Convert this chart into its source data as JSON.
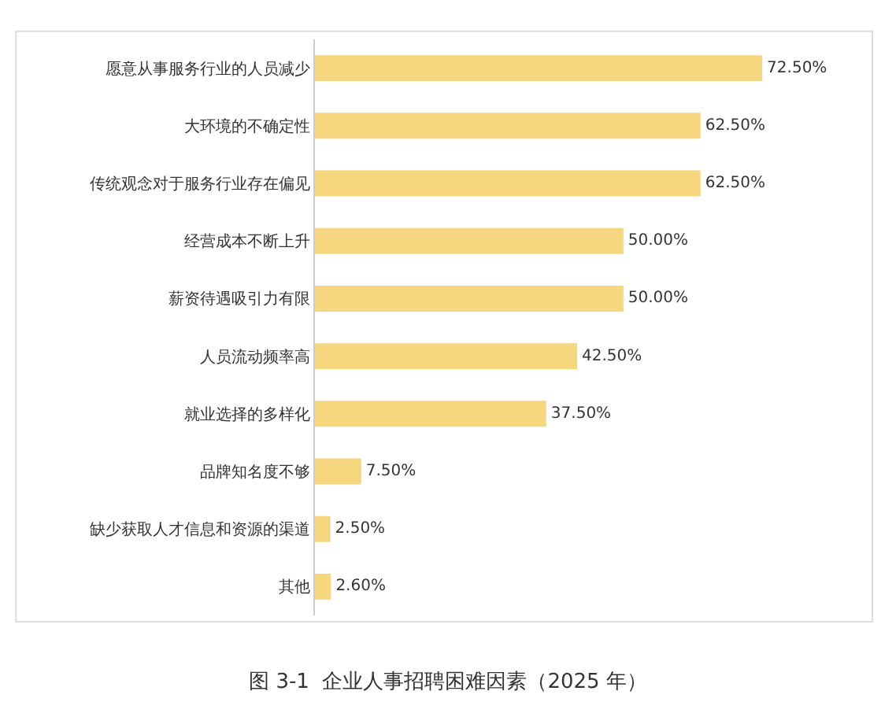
{
  "chart_data": {
    "type": "bar",
    "orientation": "horizontal",
    "title": "图 3-1  企业人事招聘困难因素（2025 年）",
    "categories": [
      "愿意从事服务行业的人员减少",
      "大环境的不确定性",
      "传统观念对于服务行业存在偏见",
      "经营成本不断上升",
      "薪资待遇吸引力有限",
      "人员流动频率高",
      "就业选择的多样化",
      "品牌知名度不够",
      "缺少获取人才信息和资源的渠道",
      "其他"
    ],
    "values": [
      72.5,
      62.5,
      62.5,
      50.0,
      50.0,
      42.5,
      37.5,
      7.5,
      2.5,
      2.6
    ],
    "value_labels": [
      "72.50%",
      "62.50%",
      "62.50%",
      "50.00%",
      "50.00%",
      "42.50%",
      "37.50%",
      "7.50%",
      "2.50%",
      "2.60%"
    ],
    "color": "#f6d67f"
  }
}
